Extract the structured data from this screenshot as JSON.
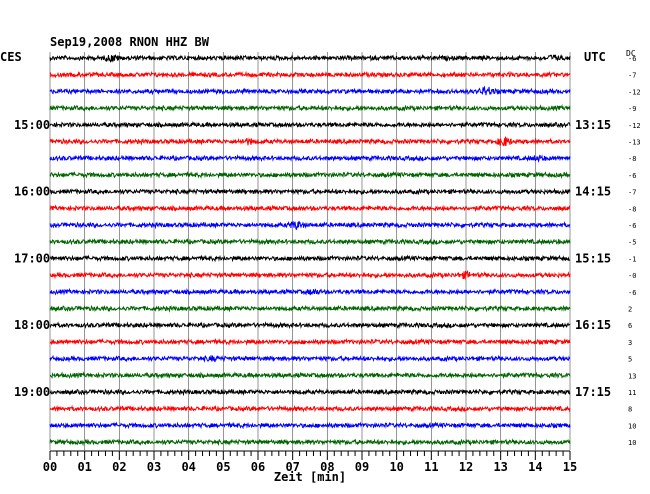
{
  "chart_data": {
    "type": "line",
    "title": "Sep19,2008   RNON HHZ BW",
    "xlabel": "Zeit [min]",
    "ylabel": "",
    "left_timezone": "CES",
    "right_timezone": "UTC",
    "dc_label": "DC",
    "x_range": [
      0,
      15
    ],
    "x_ticks": [
      "00",
      "01",
      "02",
      "03",
      "04",
      "05",
      "06",
      "07",
      "08",
      "09",
      "10",
      "11",
      "12",
      "13",
      "14",
      "15"
    ],
    "trace_count": 24,
    "trace_colors": [
      "#000000",
      "#ff0000",
      "#0000ff",
      "#006400"
    ],
    "left_hour_labels": [
      {
        "trace": 4,
        "label": "15:00"
      },
      {
        "trace": 8,
        "label": "16:00"
      },
      {
        "trace": 12,
        "label": "17:00"
      },
      {
        "trace": 16,
        "label": "18:00"
      },
      {
        "trace": 20,
        "label": "19:00"
      }
    ],
    "right_hour_labels": [
      {
        "trace": 4,
        "label": "13:15"
      },
      {
        "trace": 8,
        "label": "14:15"
      },
      {
        "trace": 12,
        "label": "15:15"
      },
      {
        "trace": 16,
        "label": "16:15"
      },
      {
        "trace": 20,
        "label": "17:15"
      }
    ],
    "dc_offsets": [
      "-6",
      "-7",
      "-12",
      "-9",
      "-12",
      "-13",
      "-8",
      "-6",
      "-7",
      "-8",
      "-6",
      "-5",
      "-1",
      "-0",
      "-6",
      "2",
      "6",
      "3",
      "5",
      "13",
      "11",
      "8",
      "10",
      "10"
    ],
    "events": [
      {
        "trace": 0,
        "minute": 1.8,
        "amp": 2.2
      },
      {
        "trace": 0,
        "minute": 14.5,
        "amp": 1.6
      },
      {
        "trace": 2,
        "minute": 12.6,
        "amp": 3.2
      },
      {
        "trace": 5,
        "minute": 5.7,
        "amp": 1.8
      },
      {
        "trace": 5,
        "minute": 13.1,
        "amp": 3.4
      },
      {
        "trace": 6,
        "minute": 14.1,
        "amp": 1.6
      },
      {
        "trace": 10,
        "minute": 7.1,
        "amp": 3.0
      },
      {
        "trace": 13,
        "minute": 12.0,
        "amp": 2.0
      },
      {
        "trace": 14,
        "minute": 7.6,
        "amp": 1.6
      },
      {
        "trace": 18,
        "minute": 4.7,
        "amp": 1.5
      }
    ]
  }
}
